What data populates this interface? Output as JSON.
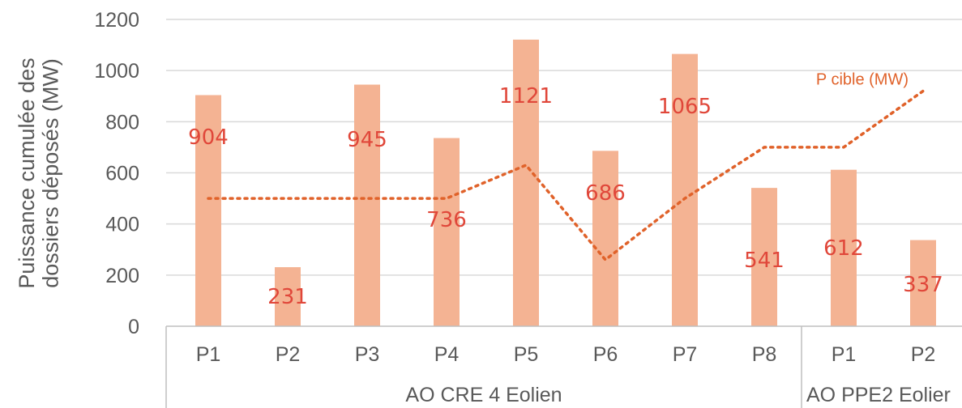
{
  "chart_data": {
    "type": "bar",
    "ylabel": "Puissance cumulée des dossiers déposés (MW)",
    "ylim": [
      0,
      1200
    ],
    "yticks": [
      0,
      200,
      400,
      600,
      800,
      1000,
      1200
    ],
    "grid": true,
    "categories": [
      "P1",
      "P2",
      "P3",
      "P4",
      "P5",
      "P6",
      "P7",
      "P8",
      "P1",
      "P2"
    ],
    "groups": [
      {
        "label": "AO CRE 4 Eolien",
        "count": 8
      },
      {
        "label": "AO PPE2 Eolier",
        "count": 2
      }
    ],
    "series": [
      {
        "type": "bar",
        "values": [
          904,
          231,
          945,
          736,
          1121,
          686,
          1065,
          541,
          612,
          337
        ],
        "color": "#f4b393"
      },
      {
        "type": "line",
        "name": "P cible (MW)",
        "style": "dotted",
        "values": [
          500,
          500,
          500,
          500,
          630,
          260,
          500,
          700,
          700,
          920
        ],
        "color": "#e0622a"
      }
    ],
    "data_label_color": "#e0473a",
    "axis_color": "#595959",
    "grid_color": "#d9d9d9"
  }
}
